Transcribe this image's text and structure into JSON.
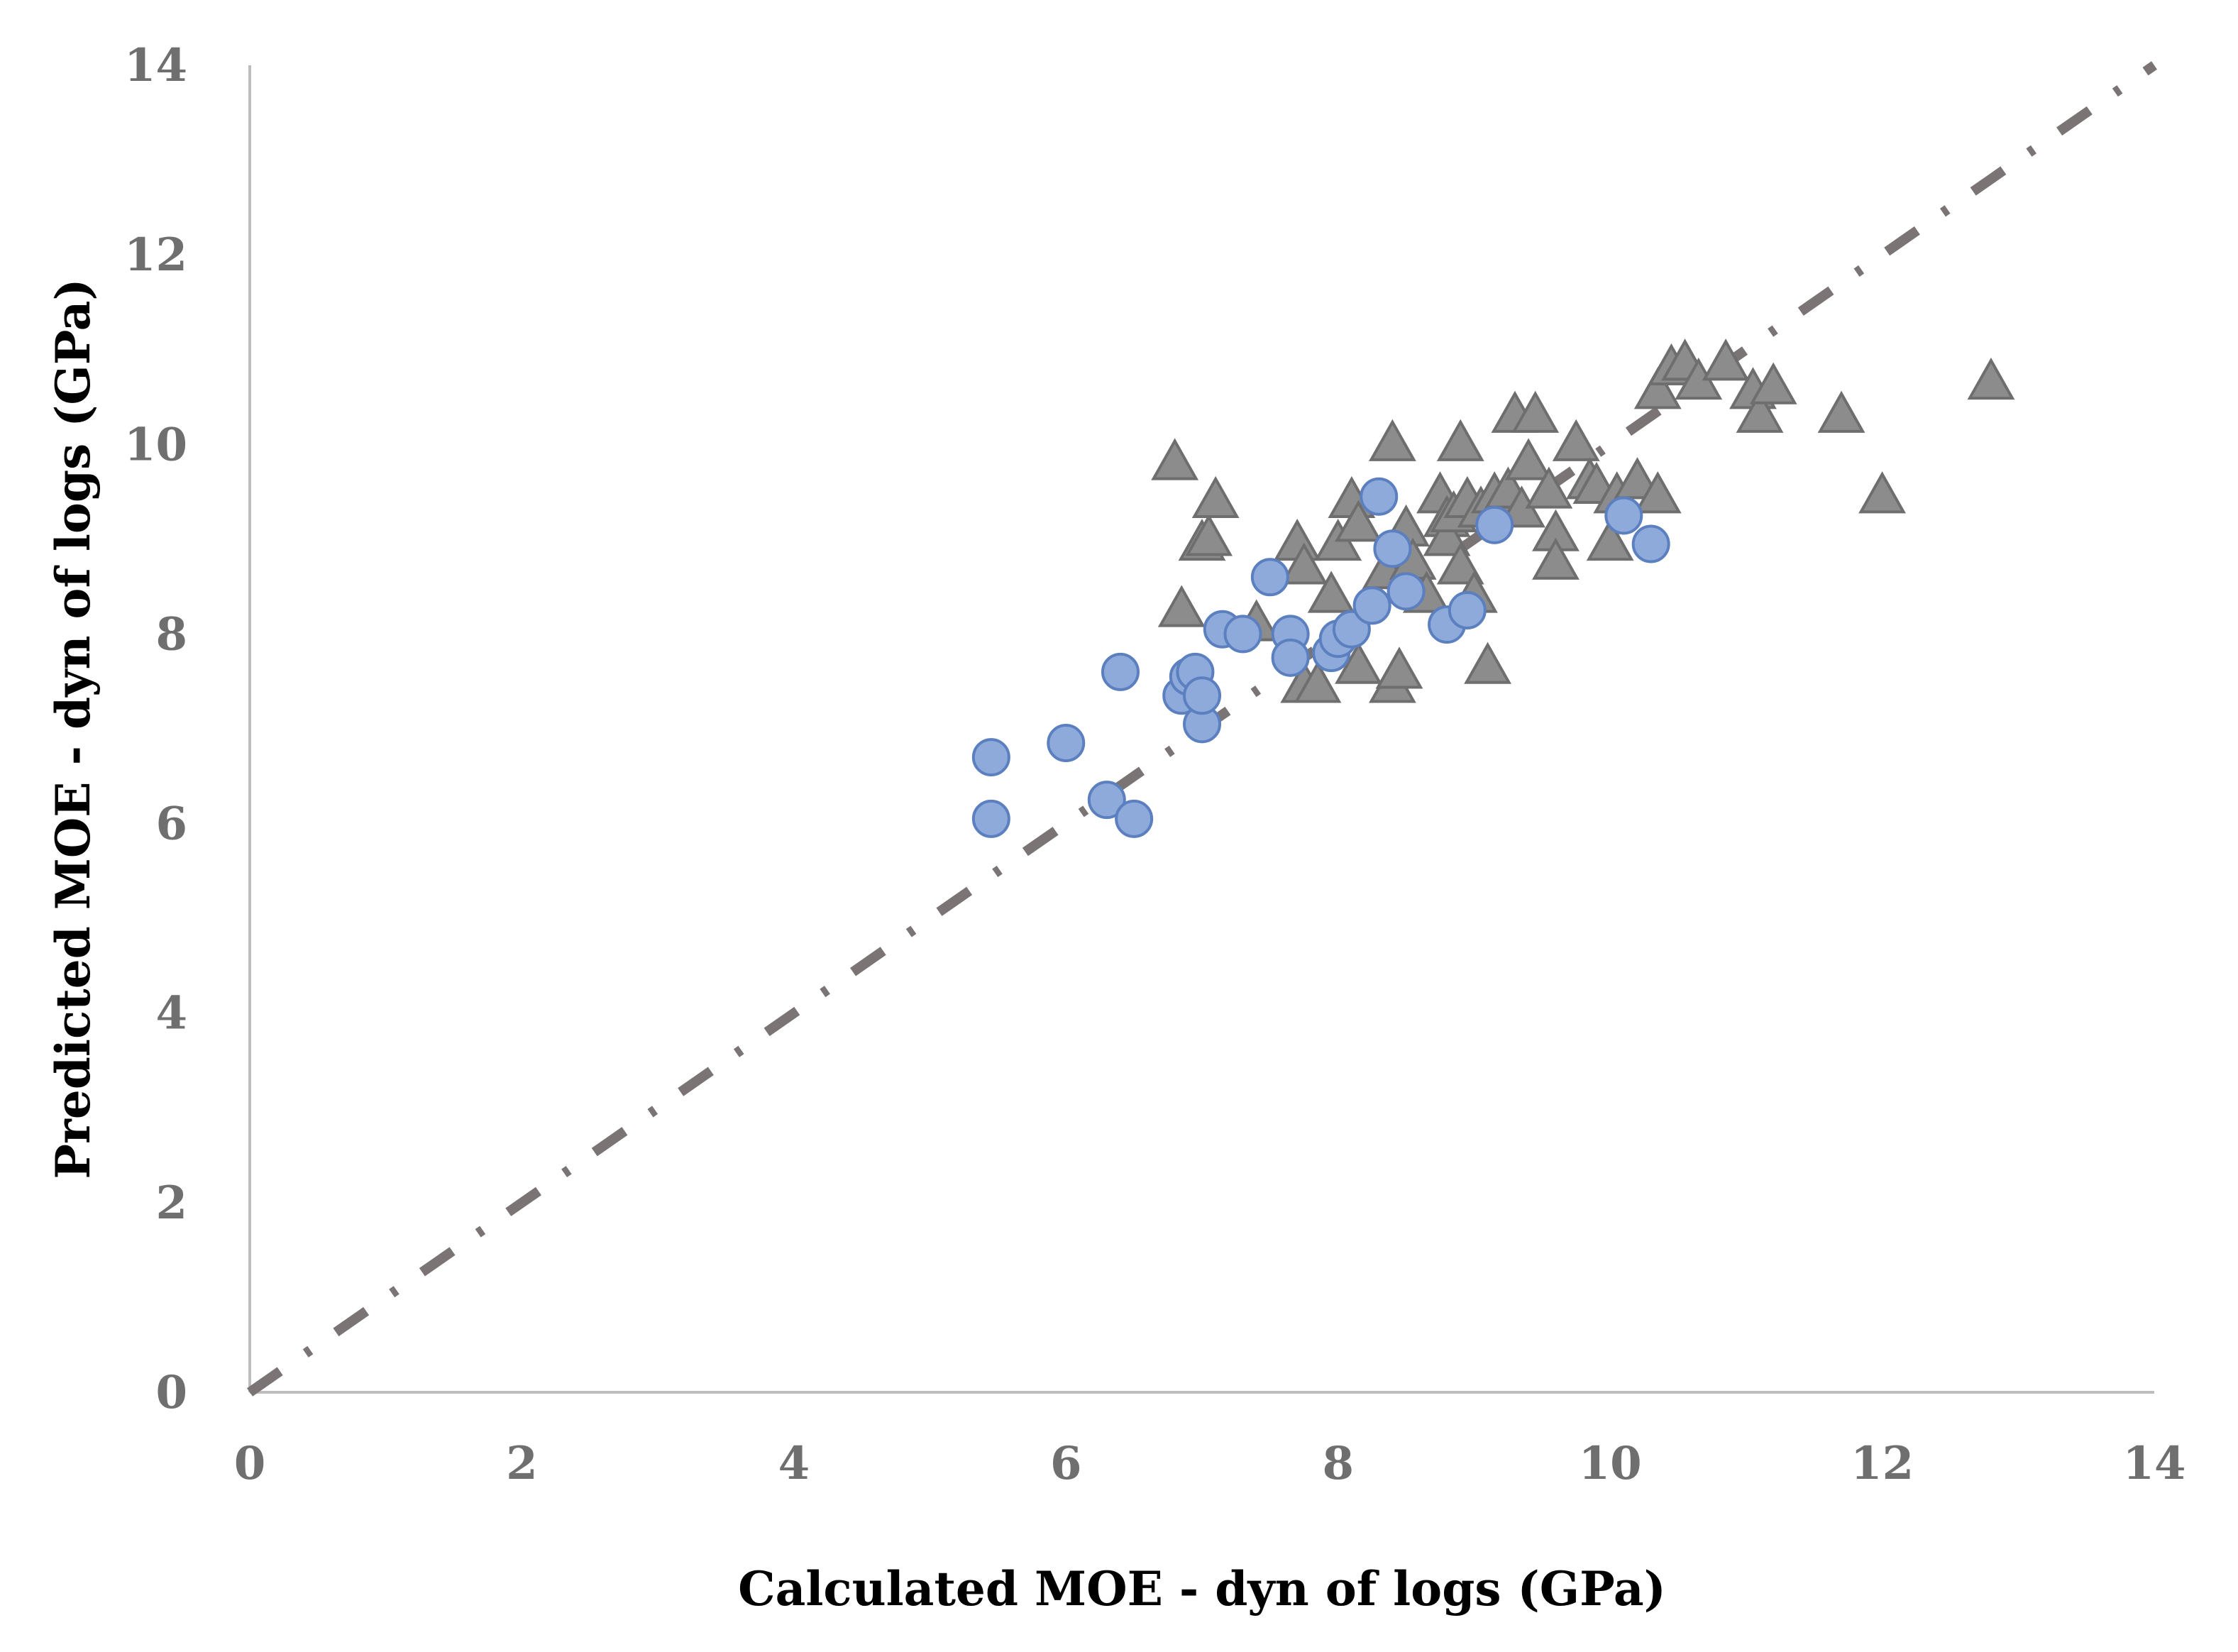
{
  "chart_data": {
    "type": "scatter",
    "title": "",
    "xlabel": "Calculated MOE - dyn of logs (GPa)",
    "ylabel": "Predicted MOE - dyn of logs (GPa)",
    "xlim": [
      0,
      14
    ],
    "ylim": [
      0,
      14
    ],
    "xticks": [
      "0",
      "2",
      "4",
      "6",
      "8",
      "10",
      "12",
      "14"
    ],
    "yticks": [
      "0",
      "2",
      "4",
      "6",
      "8",
      "10",
      "12",
      "14"
    ],
    "grid": false,
    "legend": "none",
    "colors": {
      "triangle_fill": "#8c8c8c",
      "triangle_stroke": "#6e6e6e",
      "circle_fill": "#8eaadb",
      "circle_stroke": "#5b7fbf",
      "axis": "#bdbdbd",
      "reference_line": "#7a7474"
    },
    "reference_line": {
      "name": "1:1 line",
      "style": "dash-dot",
      "from": [
        0,
        0
      ],
      "to": [
        14,
        14
      ]
    },
    "series": [
      {
        "name": "triangles",
        "marker": "triangle",
        "points": [
          [
            6.8,
            9.8
          ],
          [
            6.85,
            8.25
          ],
          [
            7.0,
            8.95
          ],
          [
            7.05,
            9.0
          ],
          [
            7.1,
            9.4
          ],
          [
            7.4,
            8.1
          ],
          [
            7.7,
            8.95
          ],
          [
            7.75,
            8.7
          ],
          [
            7.75,
            7.45
          ],
          [
            7.85,
            7.45
          ],
          [
            7.95,
            8.4
          ],
          [
            8.0,
            8.95
          ],
          [
            8.1,
            9.4
          ],
          [
            8.15,
            9.15
          ],
          [
            8.15,
            7.65
          ],
          [
            8.35,
            8.65
          ],
          [
            8.4,
            10.0
          ],
          [
            8.4,
            7.45
          ],
          [
            8.45,
            7.6
          ],
          [
            8.5,
            9.1
          ],
          [
            8.55,
            8.75
          ],
          [
            8.65,
            8.4
          ],
          [
            8.75,
            9.45
          ],
          [
            8.8,
            9.2
          ],
          [
            8.8,
            9.0
          ],
          [
            8.85,
            9.25
          ],
          [
            8.9,
            10.0
          ],
          [
            8.9,
            8.7
          ],
          [
            8.95,
            9.4
          ],
          [
            9.0,
            8.4
          ],
          [
            9.05,
            9.3
          ],
          [
            9.1,
            7.65
          ],
          [
            9.15,
            9.45
          ],
          [
            9.25,
            9.5
          ],
          [
            9.3,
            10.3
          ],
          [
            9.35,
            9.3
          ],
          [
            9.4,
            9.8
          ],
          [
            9.45,
            10.3
          ],
          [
            9.55,
            9.5
          ],
          [
            9.6,
            9.05
          ],
          [
            9.6,
            8.75
          ],
          [
            9.75,
            10.0
          ],
          [
            9.85,
            9.6
          ],
          [
            9.9,
            9.55
          ],
          [
            10.0,
            8.95
          ],
          [
            10.05,
            9.45
          ],
          [
            10.2,
            9.6
          ],
          [
            10.35,
            10.55
          ],
          [
            10.35,
            9.45
          ],
          [
            10.45,
            10.8
          ],
          [
            10.55,
            10.85
          ],
          [
            10.65,
            10.65
          ],
          [
            10.85,
            10.85
          ],
          [
            11.05,
            10.55
          ],
          [
            11.1,
            10.3
          ],
          [
            11.2,
            10.6
          ],
          [
            11.7,
            10.3
          ],
          [
            12.0,
            9.45
          ],
          [
            12.8,
            10.65
          ]
        ]
      },
      {
        "name": "circles",
        "marker": "circle",
        "points": [
          [
            5.45,
            6.7
          ],
          [
            5.45,
            6.05
          ],
          [
            6.0,
            6.85
          ],
          [
            6.3,
            6.25
          ],
          [
            6.4,
            7.6
          ],
          [
            6.5,
            6.05
          ],
          [
            6.85,
            7.35
          ],
          [
            6.9,
            7.55
          ],
          [
            6.95,
            7.6
          ],
          [
            7.0,
            7.05
          ],
          [
            7.0,
            7.35
          ],
          [
            7.15,
            8.05
          ],
          [
            7.3,
            8.0
          ],
          [
            7.5,
            8.6
          ],
          [
            7.65,
            8.0
          ],
          [
            7.65,
            7.75
          ],
          [
            7.95,
            7.8
          ],
          [
            8.0,
            7.95
          ],
          [
            8.1,
            8.05
          ],
          [
            8.25,
            8.3
          ],
          [
            8.3,
            9.45
          ],
          [
            8.4,
            8.9
          ],
          [
            8.5,
            8.45
          ],
          [
            8.8,
            8.1
          ],
          [
            8.95,
            8.25
          ],
          [
            9.15,
            9.15
          ],
          [
            10.1,
            9.25
          ],
          [
            10.3,
            8.95
          ]
        ]
      }
    ]
  }
}
